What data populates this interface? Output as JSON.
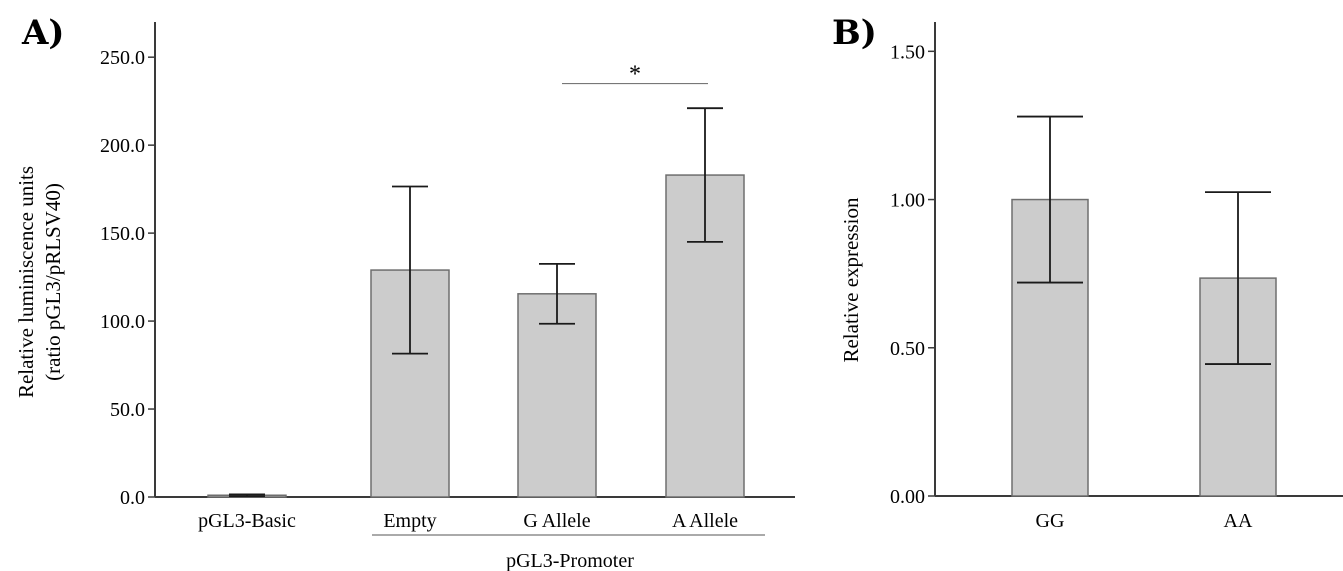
{
  "chart_data": [
    {
      "type": "bar",
      "panel_label": "A)",
      "categories": [
        "pGL3-Basic",
        "Empty",
        "G Allele",
        "A Allele"
      ],
      "values": [
        1.0,
        129.0,
        115.5,
        183.0
      ],
      "errors": [
        0.5,
        47.5,
        17.0,
        38.0
      ],
      "ylabel_lines": [
        "Relative luminiscence units",
        "(ratio pGL3/pRLSV40)"
      ],
      "ylim": [
        0,
        270
      ],
      "yticks": [
        0,
        50,
        100,
        150,
        200,
        250
      ],
      "ytick_labels": [
        "0.0",
        "50.0",
        "100.0",
        "150.0",
        "200.0",
        "250.0"
      ],
      "group": {
        "label": "pGL3-Promoter",
        "categories": [
          "Empty",
          "G Allele",
          "A Allele"
        ]
      },
      "significance": {
        "between": [
          "G Allele",
          "A Allele"
        ],
        "y": 235,
        "label": "*"
      }
    },
    {
      "type": "bar",
      "panel_label": "B)",
      "categories": [
        "GG",
        "AA"
      ],
      "values": [
        1.0,
        0.735
      ],
      "errors": [
        0.28,
        0.29
      ],
      "ylabel": "Relative expression",
      "ylim": [
        0,
        1.55
      ],
      "yticks": [
        0,
        0.5,
        1.0,
        1.5
      ],
      "ytick_labels": [
        "0.00",
        "0.50",
        "1.00",
        "1.50"
      ]
    }
  ]
}
